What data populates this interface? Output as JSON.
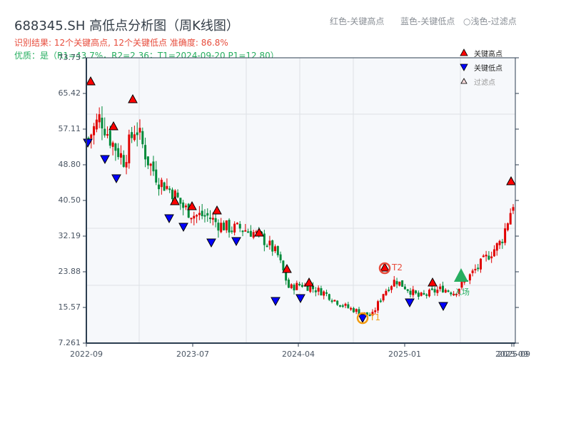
{
  "header": {
    "title": "688345.SH 高低点分析图（周K线图）",
    "result_line": "识别结果: 12个关键高点, 12个关键低点   准确度: 86.8%",
    "quality_line": "优质：是（R1=43.7%，R2=2.36；T1=2024-09-20 P1=12.80）"
  },
  "top_legend": {
    "red": "红色-关键高点",
    "blue": "蓝色-关键低点",
    "light": "○浅色-过滤点"
  },
  "legend": {
    "items": [
      {
        "label": "关键高点",
        "marker": "triangle-up",
        "color": "#ff0000"
      },
      {
        "label": "关键低点",
        "marker": "triangle-down",
        "color": "#0000ff"
      },
      {
        "label": "过滤点",
        "marker": "triangle-up-outline",
        "color": "#f4c2c2"
      }
    ]
  },
  "annotations": {
    "t1_label": "T1",
    "t2_label": "T2",
    "entry_label": "入场"
  },
  "colors": {
    "up": "#e00000",
    "down": "#008a3a",
    "high_marker": "#ff0000",
    "low_marker": "#0000ff",
    "t1_ring": "#f39c12",
    "t2_ring": "#e74c3c",
    "entry": "#27ae60",
    "axis": "#2c3e50",
    "grid": "#dde1e6",
    "plot_bg": "#f6f8fb"
  },
  "chart_data": {
    "type": "candlestick",
    "title": "688345.SH 高低点分析图（周K线图）",
    "xlabel": "",
    "ylabel": "",
    "ylim": [
      7.261,
      73.73
    ],
    "yticks": [
      "73.73",
      "65.42",
      "57.11",
      "48.80",
      "40.50",
      "32.19",
      "23.88",
      "15.57",
      "7.261"
    ],
    "xticks": [
      "2022-09",
      "2023-07",
      "2024-04",
      "2025-01",
      "2025-09",
      "2025-09"
    ],
    "grid": true,
    "legend_position": "upper right",
    "key_highs": [
      {
        "approx_date": "2022-09",
        "price": 67.5
      },
      {
        "approx_date": "2022-11",
        "price": 57.0
      },
      {
        "approx_date": "2023-01",
        "price": 62.5
      },
      {
        "approx_date": "2023-06",
        "price": 39.5
      },
      {
        "approx_date": "2023-07",
        "price": 38.7
      },
      {
        "approx_date": "2023-09",
        "price": 37.7
      },
      {
        "approx_date": "2024-01",
        "price": 32.7
      },
      {
        "approx_date": "2024-03",
        "price": 24.0
      },
      {
        "approx_date": "2024-05",
        "price": 21.0
      },
      {
        "approx_date": "2024-11",
        "price": 24.2
      },
      {
        "approx_date": "2025-04",
        "price": 21.0
      },
      {
        "approx_date": "2025-09",
        "price": 44.5
      }
    ],
    "key_lows": [
      {
        "approx_date": "2022-09",
        "price": 53.5
      },
      {
        "approx_date": "2022-11",
        "price": 50.0
      },
      {
        "approx_date": "2022-12",
        "price": 45.0
      },
      {
        "approx_date": "2023-06",
        "price": 36.5
      },
      {
        "approx_date": "2023-07",
        "price": 34.5
      },
      {
        "approx_date": "2023-09",
        "price": 30.5
      },
      {
        "approx_date": "2023-12",
        "price": 31.0
      },
      {
        "approx_date": "2024-03",
        "price": 16.5
      },
      {
        "approx_date": "2024-04",
        "price": 17.5
      },
      {
        "approx_date": "2024-09",
        "price": 12.8
      },
      {
        "approx_date": "2025-01",
        "price": 16.5
      },
      {
        "approx_date": "2025-04",
        "price": 15.5
      }
    ],
    "T1": {
      "date": "2024-09-20",
      "price": 12.8
    },
    "T2": {
      "approx_date": "2024-11",
      "price": 24.2
    },
    "entry": {
      "approx_date": "2025-05",
      "price": 22.5
    },
    "close_path": [
      {
        "x": "2022-09",
        "y": 55
      },
      {
        "x": "2022-10",
        "y": 60
      },
      {
        "x": "2022-11",
        "y": 54
      },
      {
        "x": "2022-12",
        "y": 50
      },
      {
        "x": "2023-01",
        "y": 58
      },
      {
        "x": "2023-02",
        "y": 50
      },
      {
        "x": "2023-03",
        "y": 45
      },
      {
        "x": "2023-04",
        "y": 43
      },
      {
        "x": "2023-05",
        "y": 39
      },
      {
        "x": "2023-06",
        "y": 37
      },
      {
        "x": "2023-07",
        "y": 37
      },
      {
        "x": "2023-08",
        "y": 35
      },
      {
        "x": "2023-09",
        "y": 34
      },
      {
        "x": "2023-10",
        "y": 34
      },
      {
        "x": "2023-11",
        "y": 33
      },
      {
        "x": "2023-12",
        "y": 31
      },
      {
        "x": "2024-01",
        "y": 28
      },
      {
        "x": "2024-02",
        "y": 20
      },
      {
        "x": "2024-03",
        "y": 21
      },
      {
        "x": "2024-04",
        "y": 20
      },
      {
        "x": "2024-05",
        "y": 19
      },
      {
        "x": "2024-06",
        "y": 17
      },
      {
        "x": "2024-07",
        "y": 15.5
      },
      {
        "x": "2024-08",
        "y": 14.5
      },
      {
        "x": "2024-09",
        "y": 13.5
      },
      {
        "x": "2024-10",
        "y": 19
      },
      {
        "x": "2024-11",
        "y": 22
      },
      {
        "x": "2024-12",
        "y": 20
      },
      {
        "x": "2025-01",
        "y": 18
      },
      {
        "x": "2025-02",
        "y": 19
      },
      {
        "x": "2025-03",
        "y": 20
      },
      {
        "x": "2025-04",
        "y": 19
      },
      {
        "x": "2025-05",
        "y": 22
      },
      {
        "x": "2025-06",
        "y": 25
      },
      {
        "x": "2025-07",
        "y": 28
      },
      {
        "x": "2025-08",
        "y": 31
      },
      {
        "x": "2025-09",
        "y": 40
      }
    ]
  }
}
